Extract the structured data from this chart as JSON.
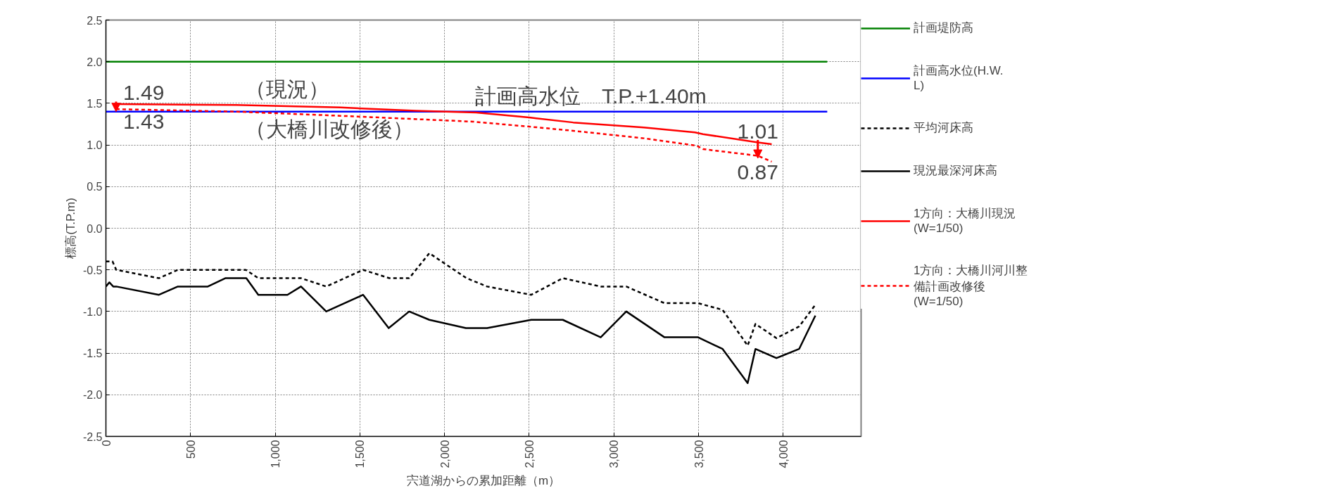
{
  "chart_data": {
    "type": "line",
    "xlabel": "宍道湖からの累加距離（m）",
    "ylabel": "標高(T.P.m)",
    "xlim": [
      0,
      4460
    ],
    "ylim": [
      -2.5,
      2.5
    ],
    "xticks": [
      0,
      500,
      {
        "value": 1000,
        "label": "1,000"
      },
      {
        "value": 1500,
        "label": "1,500"
      },
      {
        "value": 2000,
        "label": "2,000"
      },
      {
        "value": 2500,
        "label": "2,500"
      },
      {
        "value": 3000,
        "label": "3,000"
      },
      {
        "value": 3500,
        "label": "3,500"
      },
      {
        "value": 4000,
        "label": "4,000"
      }
    ],
    "yticks": [
      {
        "value": -2.5,
        "label": "-2.5"
      },
      {
        "value": -2,
        "label": "-2.0"
      },
      {
        "value": -1.5,
        "label": "-1.5"
      },
      {
        "value": -1,
        "label": "-1.0"
      },
      {
        "value": -0.5,
        "label": "-0.5"
      },
      {
        "value": 0,
        "label": "0.0"
      },
      {
        "value": 0.5,
        "label": "0.5"
      },
      {
        "value": 1,
        "label": "1.0"
      },
      {
        "value": 1.5,
        "label": "1.5"
      },
      {
        "value": 2,
        "label": "2.0"
      },
      {
        "value": 2.5,
        "label": "2.5"
      }
    ],
    "grid": true,
    "legend": "right",
    "series": [
      {
        "name": "計画堤防高",
        "color": "#008000",
        "line_style": "solid",
        "x": [
          0,
          4260
        ],
        "values": [
          2.0,
          2.0
        ]
      },
      {
        "name": "計画高水位(H.W.L)",
        "color": "#0000ff",
        "line_style": "solid",
        "x": [
          0,
          4260
        ],
        "values": [
          1.4,
          1.4
        ]
      },
      {
        "name": "平均河床高",
        "color": "#000000",
        "line_style": "dashed",
        "x": [
          0,
          39,
          61,
          313,
          425,
          826,
          900,
          1152,
          1301,
          1519,
          1674,
          1791,
          1910,
          2130,
          2251,
          2512,
          2698,
          2922,
          3073,
          3299,
          3497,
          3642,
          3790,
          3836,
          3960,
          4094,
          4190
        ],
        "values": [
          -0.4,
          -0.4,
          -0.5,
          -0.6,
          -0.5,
          -0.5,
          -0.6,
          -0.6,
          -0.7,
          -0.5,
          -0.6,
          -0.6,
          -0.3,
          -0.6,
          -0.7,
          -0.8,
          -0.6,
          -0.7,
          -0.7,
          -0.9,
          -0.9,
          -0.98,
          -1.41,
          -1.15,
          -1.32,
          -1.18,
          -0.92
        ]
      },
      {
        "name": "現況最深河床高",
        "color": "#000000",
        "line_style": "solid",
        "x": [
          0,
          20,
          43,
          61,
          313,
          425,
          602,
          705,
          829,
          900,
          1072,
          1152,
          1301,
          1519,
          1670,
          1791,
          1910,
          2126,
          2251,
          2512,
          2698,
          2922,
          3073,
          3299,
          3497,
          3642,
          3790,
          3836,
          3960,
          4094,
          4190
        ],
        "values": [
          -0.7,
          -0.65,
          -0.7,
          -0.7,
          -0.8,
          -0.7,
          -0.7,
          -0.6,
          -0.6,
          -0.8,
          -0.8,
          -0.7,
          -1.0,
          -0.8,
          -1.2,
          -1.0,
          -1.1,
          -1.2,
          -1.2,
          -1.1,
          -1.1,
          -1.31,
          -1.0,
          -1.31,
          -1.31,
          -1.45,
          -1.86,
          -1.45,
          -1.56,
          -1.45,
          -1.05
        ]
      },
      {
        "name": "1方向：大橋川現況\n(W=1/50)",
        "color": "#ff0000",
        "line_style": "solid",
        "x": [
          60,
          770,
          1385,
          1832,
          2186,
          2500,
          2760,
          3177,
          3479,
          3526,
          3850,
          3932
        ],
        "values": [
          1.49,
          1.48,
          1.45,
          1.41,
          1.39,
          1.33,
          1.27,
          1.21,
          1.15,
          1.13,
          1.03,
          1.01
        ]
      },
      {
        "name": "1方向：大橋川河川整備計画改修後\n(W=1/50)",
        "color": "#ff0000",
        "line_style": "dashed",
        "x": [
          60,
          770,
          1385,
          2167,
          2500,
          2760,
          3177,
          3490,
          3526,
          3850,
          3932
        ],
        "values": [
          1.43,
          1.4,
          1.35,
          1.28,
          1.22,
          1.17,
          1.08,
          0.99,
          0.95,
          0.87,
          0.8
        ]
      }
    ],
    "annotations": [
      {
        "text": "1.49",
        "x": 60,
        "y": 1.49
      },
      {
        "text": "（現況）",
        "x": 820,
        "y": 1.48
      },
      {
        "text": "1.43",
        "x": 60,
        "y": 1.43
      },
      {
        "text": "（大橋川改修後）",
        "x": 820,
        "y": 1.4
      },
      {
        "text": "計画高水位　T.P.+1.40m",
        "x": 2180,
        "y": 1.4
      },
      {
        "text": "1.01",
        "x": 3850,
        "y": 1.03
      },
      {
        "text": "0.87",
        "x": 3850,
        "y": 0.87
      }
    ]
  }
}
